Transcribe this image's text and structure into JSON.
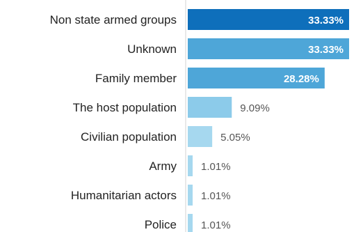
{
  "chart_data": {
    "type": "bar",
    "orientation": "horizontal",
    "categories": [
      "Non state armed groups",
      "Unknown",
      "Family member",
      "The host population",
      "Civilian population",
      "Army",
      "Humanitarian actors",
      "Police"
    ],
    "values": [
      33.33,
      33.33,
      28.28,
      9.09,
      5.05,
      1.01,
      1.01,
      1.01
    ],
    "value_labels": [
      "33.33%",
      "33.33%",
      "28.28%",
      "9.09%",
      "5.05%",
      "1.01%",
      "1.01%",
      "1.01%"
    ],
    "bar_colors": [
      "#0e6fbb",
      "#4ea6d8",
      "#4ea6d8",
      "#8ccbea",
      "#a6d8ef",
      "#a6d8ef",
      "#a6d8ef",
      "#a6d8ef"
    ],
    "title": "",
    "xlabel": "",
    "ylabel": "",
    "xlim": [
      0,
      33.33
    ],
    "grid": false,
    "legend": "none"
  }
}
